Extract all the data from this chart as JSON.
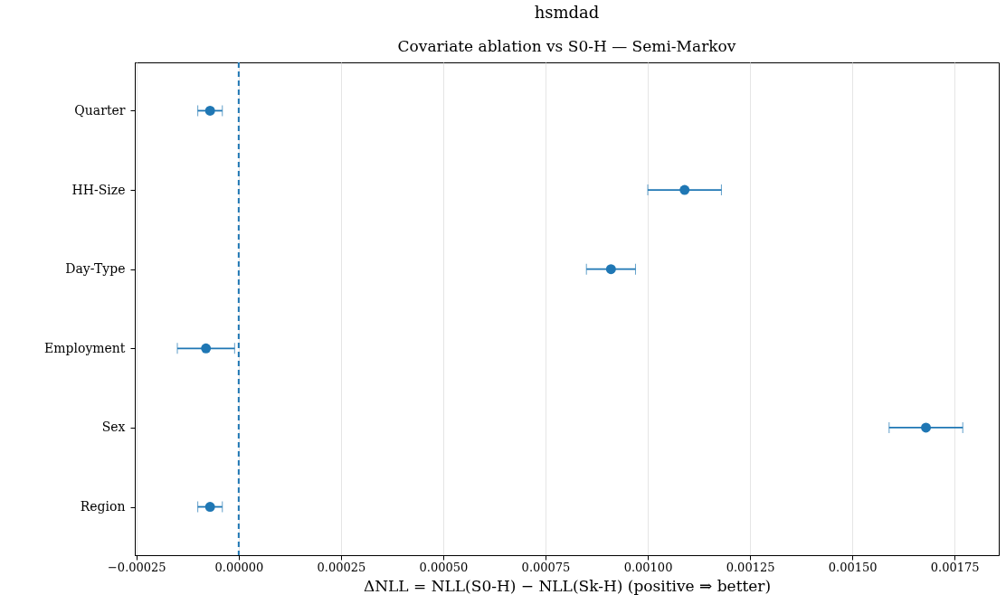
{
  "chart_data": {
    "type": "scatter",
    "orientation": "horizontal",
    "title": "hsmdad",
    "subtitle": "Covariate ablation vs S0-H — Semi-Markov",
    "xlabel": "ΔNLL = NLL(S0-H) − NLL(Sk-H)  (positive ⇒ better)",
    "categories": [
      "Quarter",
      "HH-Size",
      "Day-Type",
      "Employment",
      "Sex",
      "Region"
    ],
    "series": [
      {
        "color": "#1f77b4",
        "values": [
          -7e-05,
          0.00109,
          0.00091,
          -8e-05,
          0.00168,
          -7e-05
        ],
        "errors": [
          3e-05,
          9e-05,
          6e-05,
          7e-05,
          9e-05,
          3e-05
        ]
      }
    ],
    "xlim": [
      -0.000254,
      0.001858
    ],
    "xticks": [
      {
        "value": -0.00025,
        "label": "−0.00025"
      },
      {
        "value": 0,
        "label": "0.00000"
      },
      {
        "value": 0.00025,
        "label": "0.00025"
      },
      {
        "value": 0.0005,
        "label": "0.00050"
      },
      {
        "value": 0.00075,
        "label": "0.00075"
      },
      {
        "value": 0.001,
        "label": "0.00100"
      },
      {
        "value": 0.00125,
        "label": "0.00125"
      },
      {
        "value": 0.0015,
        "label": "0.00150"
      },
      {
        "value": 0.00175,
        "label": "0.00175"
      }
    ],
    "grid": "x",
    "marker": "circle",
    "ref_lines": [
      {
        "axis": "x",
        "value": 0,
        "color": "#1f77b4",
        "line_style": "dashed"
      }
    ]
  }
}
